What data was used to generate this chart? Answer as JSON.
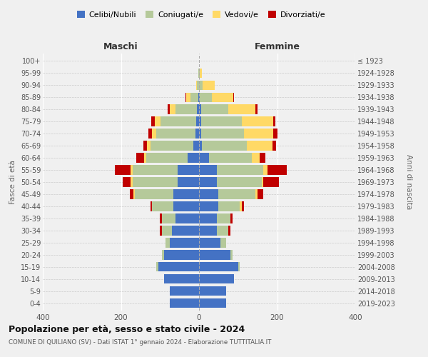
{
  "age_groups": [
    "0-4",
    "5-9",
    "10-14",
    "15-19",
    "20-24",
    "25-29",
    "30-34",
    "35-39",
    "40-44",
    "45-49",
    "50-54",
    "55-59",
    "60-64",
    "65-69",
    "70-74",
    "75-79",
    "80-84",
    "85-89",
    "90-94",
    "95-99",
    "100+"
  ],
  "birth_years": [
    "2019-2023",
    "2014-2018",
    "2009-2013",
    "2004-2008",
    "1999-2003",
    "1994-1998",
    "1989-1993",
    "1984-1988",
    "1979-1983",
    "1974-1978",
    "1969-1973",
    "1964-1968",
    "1959-1963",
    "1954-1958",
    "1949-1953",
    "1944-1948",
    "1939-1943",
    "1934-1938",
    "1929-1933",
    "1924-1928",
    "≤ 1923"
  ],
  "male": {
    "celibi": [
      75,
      75,
      90,
      105,
      90,
      75,
      70,
      60,
      65,
      65,
      55,
      55,
      30,
      15,
      10,
      8,
      5,
      2,
      0,
      0,
      0
    ],
    "coniugati": [
      0,
      0,
      0,
      5,
      5,
      10,
      25,
      35,
      55,
      100,
      115,
      115,
      105,
      110,
      100,
      90,
      55,
      20,
      5,
      1,
      0
    ],
    "vedovi": [
      0,
      0,
      0,
      0,
      0,
      0,
      0,
      0,
      0,
      3,
      5,
      5,
      5,
      8,
      10,
      15,
      15,
      10,
      3,
      0,
      0
    ],
    "divorziati": [
      0,
      0,
      0,
      0,
      0,
      0,
      5,
      5,
      5,
      10,
      20,
      40,
      20,
      10,
      10,
      10,
      5,
      2,
      0,
      0,
      0
    ]
  },
  "female": {
    "nubili": [
      70,
      70,
      90,
      100,
      80,
      55,
      45,
      45,
      50,
      50,
      45,
      45,
      25,
      8,
      5,
      5,
      5,
      2,
      0,
      0,
      0
    ],
    "coniugate": [
      0,
      0,
      0,
      5,
      5,
      15,
      30,
      35,
      55,
      95,
      115,
      120,
      110,
      115,
      110,
      105,
      70,
      30,
      10,
      2,
      0
    ],
    "vedove": [
      0,
      0,
      0,
      0,
      0,
      0,
      0,
      0,
      5,
      5,
      5,
      10,
      20,
      65,
      75,
      80,
      70,
      55,
      30,
      5,
      0
    ],
    "divorziate": [
      0,
      0,
      0,
      0,
      0,
      0,
      5,
      5,
      5,
      15,
      40,
      50,
      15,
      10,
      10,
      5,
      5,
      2,
      0,
      0,
      0
    ]
  },
  "colors": {
    "celibi": "#4472c4",
    "coniugati": "#b5c99a",
    "vedovi": "#ffd966",
    "divorziati": "#c00000"
  },
  "legend_labels": [
    "Celibi/Nubili",
    "Coniugati/e",
    "Vedovi/e",
    "Divorziati/e"
  ],
  "xlabel_left": "Maschi",
  "xlabel_right": "Femmine",
  "ylabel_left": "Fasce di età",
  "ylabel_right": "Anni di nascita",
  "title": "Popolazione per età, sesso e stato civile - 2024",
  "subtitle": "COMUNE DI QUILIANO (SV) - Dati ISTAT 1° gennaio 2024 - Elaborazione TUTTITALIA.IT",
  "xlim": 400,
  "background_color": "#f0f0f0",
  "grid_color": "#ffffff"
}
